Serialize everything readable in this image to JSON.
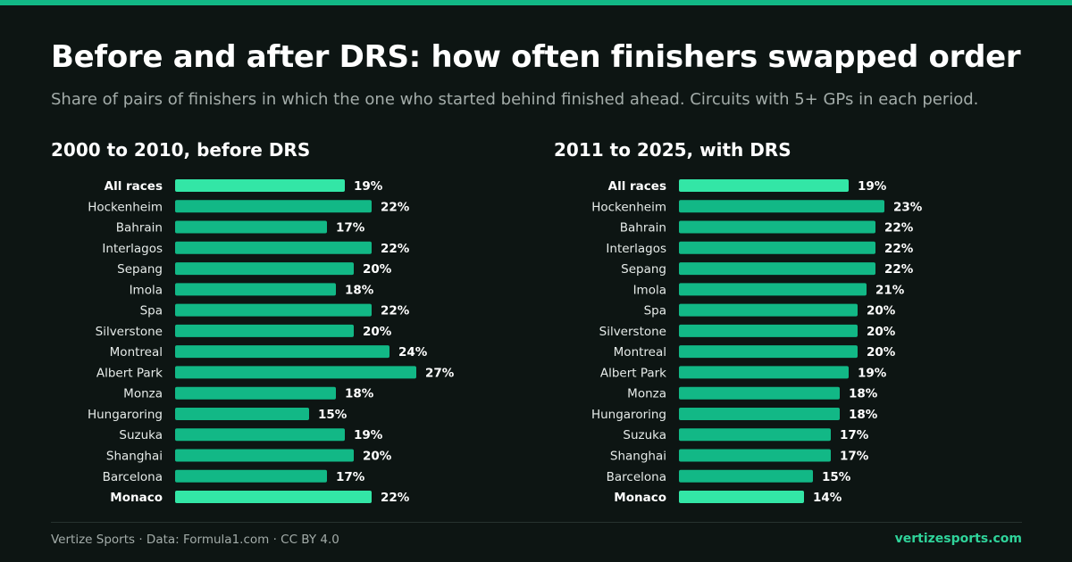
{
  "header": {
    "title": "Before and after DRS: how often finishers swapped order",
    "subtitle": "Share of pairs of finishers in which the one who started behind finished ahead. Circuits with 5+ GPs in each period."
  },
  "footer": {
    "credit": "Vertize Sports · Data: Formula1.com · CC BY 4.0",
    "site": "vertizesports.com"
  },
  "colors": {
    "background": "#0d1513",
    "bar": "#12b886",
    "highlight_bar": "#33e6a6",
    "accent_text": "#2fd39a"
  },
  "chart_data": [
    {
      "type": "bar",
      "orientation": "horizontal",
      "title": "2000 to 2010, before DRS",
      "unit": "%",
      "highlighted": [
        "All races",
        "Monaco"
      ],
      "categories": [
        "All races",
        "Hockenheim",
        "Bahrain",
        "Interlagos",
        "Sepang",
        "Imola",
        "Spa",
        "Silverstone",
        "Montreal",
        "Albert Park",
        "Monza",
        "Hungaroring",
        "Suzuka",
        "Shanghai",
        "Barcelona",
        "Monaco"
      ],
      "values": [
        19,
        22,
        17,
        22,
        20,
        18,
        22,
        20,
        24,
        27,
        18,
        15,
        19,
        20,
        17,
        22
      ],
      "value_labels": [
        "19%",
        "22%",
        "17%",
        "22%",
        "20%",
        "18%",
        "22%",
        "20%",
        "24%",
        "27%",
        "18%",
        "15%",
        "19%",
        "20%",
        "17%",
        "22%"
      ]
    },
    {
      "type": "bar",
      "orientation": "horizontal",
      "title": "2011 to 2025, with DRS",
      "unit": "%",
      "highlighted": [
        "All races",
        "Monaco"
      ],
      "categories": [
        "All races",
        "Hockenheim",
        "Bahrain",
        "Interlagos",
        "Sepang",
        "Imola",
        "Spa",
        "Silverstone",
        "Montreal",
        "Albert Park",
        "Monza",
        "Hungaroring",
        "Suzuka",
        "Shanghai",
        "Barcelona",
        "Monaco"
      ],
      "values": [
        19,
        23,
        22,
        22,
        22,
        21,
        20,
        20,
        20,
        19,
        18,
        18,
        17,
        17,
        15,
        14
      ],
      "value_labels": [
        "19%",
        "23%",
        "22%",
        "22%",
        "22%",
        "21%",
        "20%",
        "20%",
        "20%",
        "19%",
        "18%",
        "18%",
        "17%",
        "17%",
        "15%",
        "14%"
      ]
    }
  ]
}
